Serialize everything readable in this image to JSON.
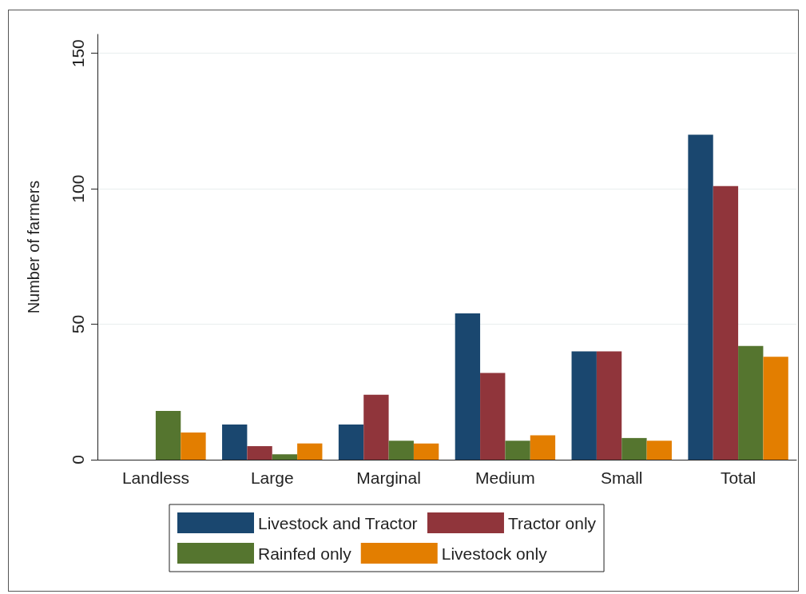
{
  "chart_data": {
    "type": "bar",
    "ylabel": "Number of farmers",
    "categories": [
      "Landless",
      "Large",
      "Marginal",
      "Medium",
      "Small",
      "Total"
    ],
    "series": [
      {
        "name": "Livestock and Tractor",
        "color": "#1a476f",
        "values": [
          0,
          13,
          13,
          54,
          40,
          120
        ]
      },
      {
        "name": "Tractor only",
        "color": "#90353b",
        "values": [
          0,
          5,
          24,
          32,
          40,
          101
        ]
      },
      {
        "name": "Rainfed only",
        "color": "#55752f",
        "values": [
          18,
          2,
          7,
          7,
          8,
          42
        ]
      },
      {
        "name": "Livestock only",
        "color": "#e37e00",
        "values": [
          10,
          6,
          6,
          9,
          7,
          38
        ]
      }
    ],
    "ylim": [
      0,
      157
    ],
    "yticks": [
      0,
      50,
      100,
      150
    ],
    "grid": "y",
    "legend": "bottom"
  }
}
